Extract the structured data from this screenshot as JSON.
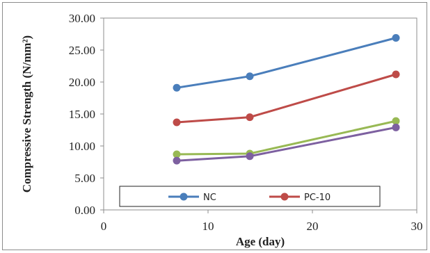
{
  "chart_data": {
    "type": "line",
    "xlabel": "Age (day)",
    "ylabel": "Compressive Strength (N/mm²)",
    "xlim": [
      0,
      30
    ],
    "ylim": [
      0,
      30
    ],
    "xticks": [
      0,
      10,
      20,
      30
    ],
    "yticks": [
      0,
      5,
      10,
      15,
      20,
      25,
      30
    ],
    "ytick_labels": [
      "0.00",
      "5.00",
      "10.00",
      "15.00",
      "20.00",
      "25.00",
      "30.00"
    ],
    "xtick_labels": [
      "0",
      "10",
      "20",
      "30"
    ],
    "grid": false,
    "legend_position": "bottom",
    "x": [
      7,
      14,
      28
    ],
    "series": [
      {
        "name": "NC",
        "values": [
          19.1,
          20.9,
          26.9
        ],
        "color": "#4a7ebb"
      },
      {
        "name": "PC-10",
        "values": [
          13.7,
          14.5,
          21.2
        ],
        "color": "#be4b48"
      },
      {
        "name": "",
        "values": [
          8.7,
          8.8,
          13.9
        ],
        "color": "#98b954"
      },
      {
        "name": "",
        "values": [
          7.7,
          8.4,
          12.9
        ],
        "color": "#7d60a0"
      }
    ]
  }
}
